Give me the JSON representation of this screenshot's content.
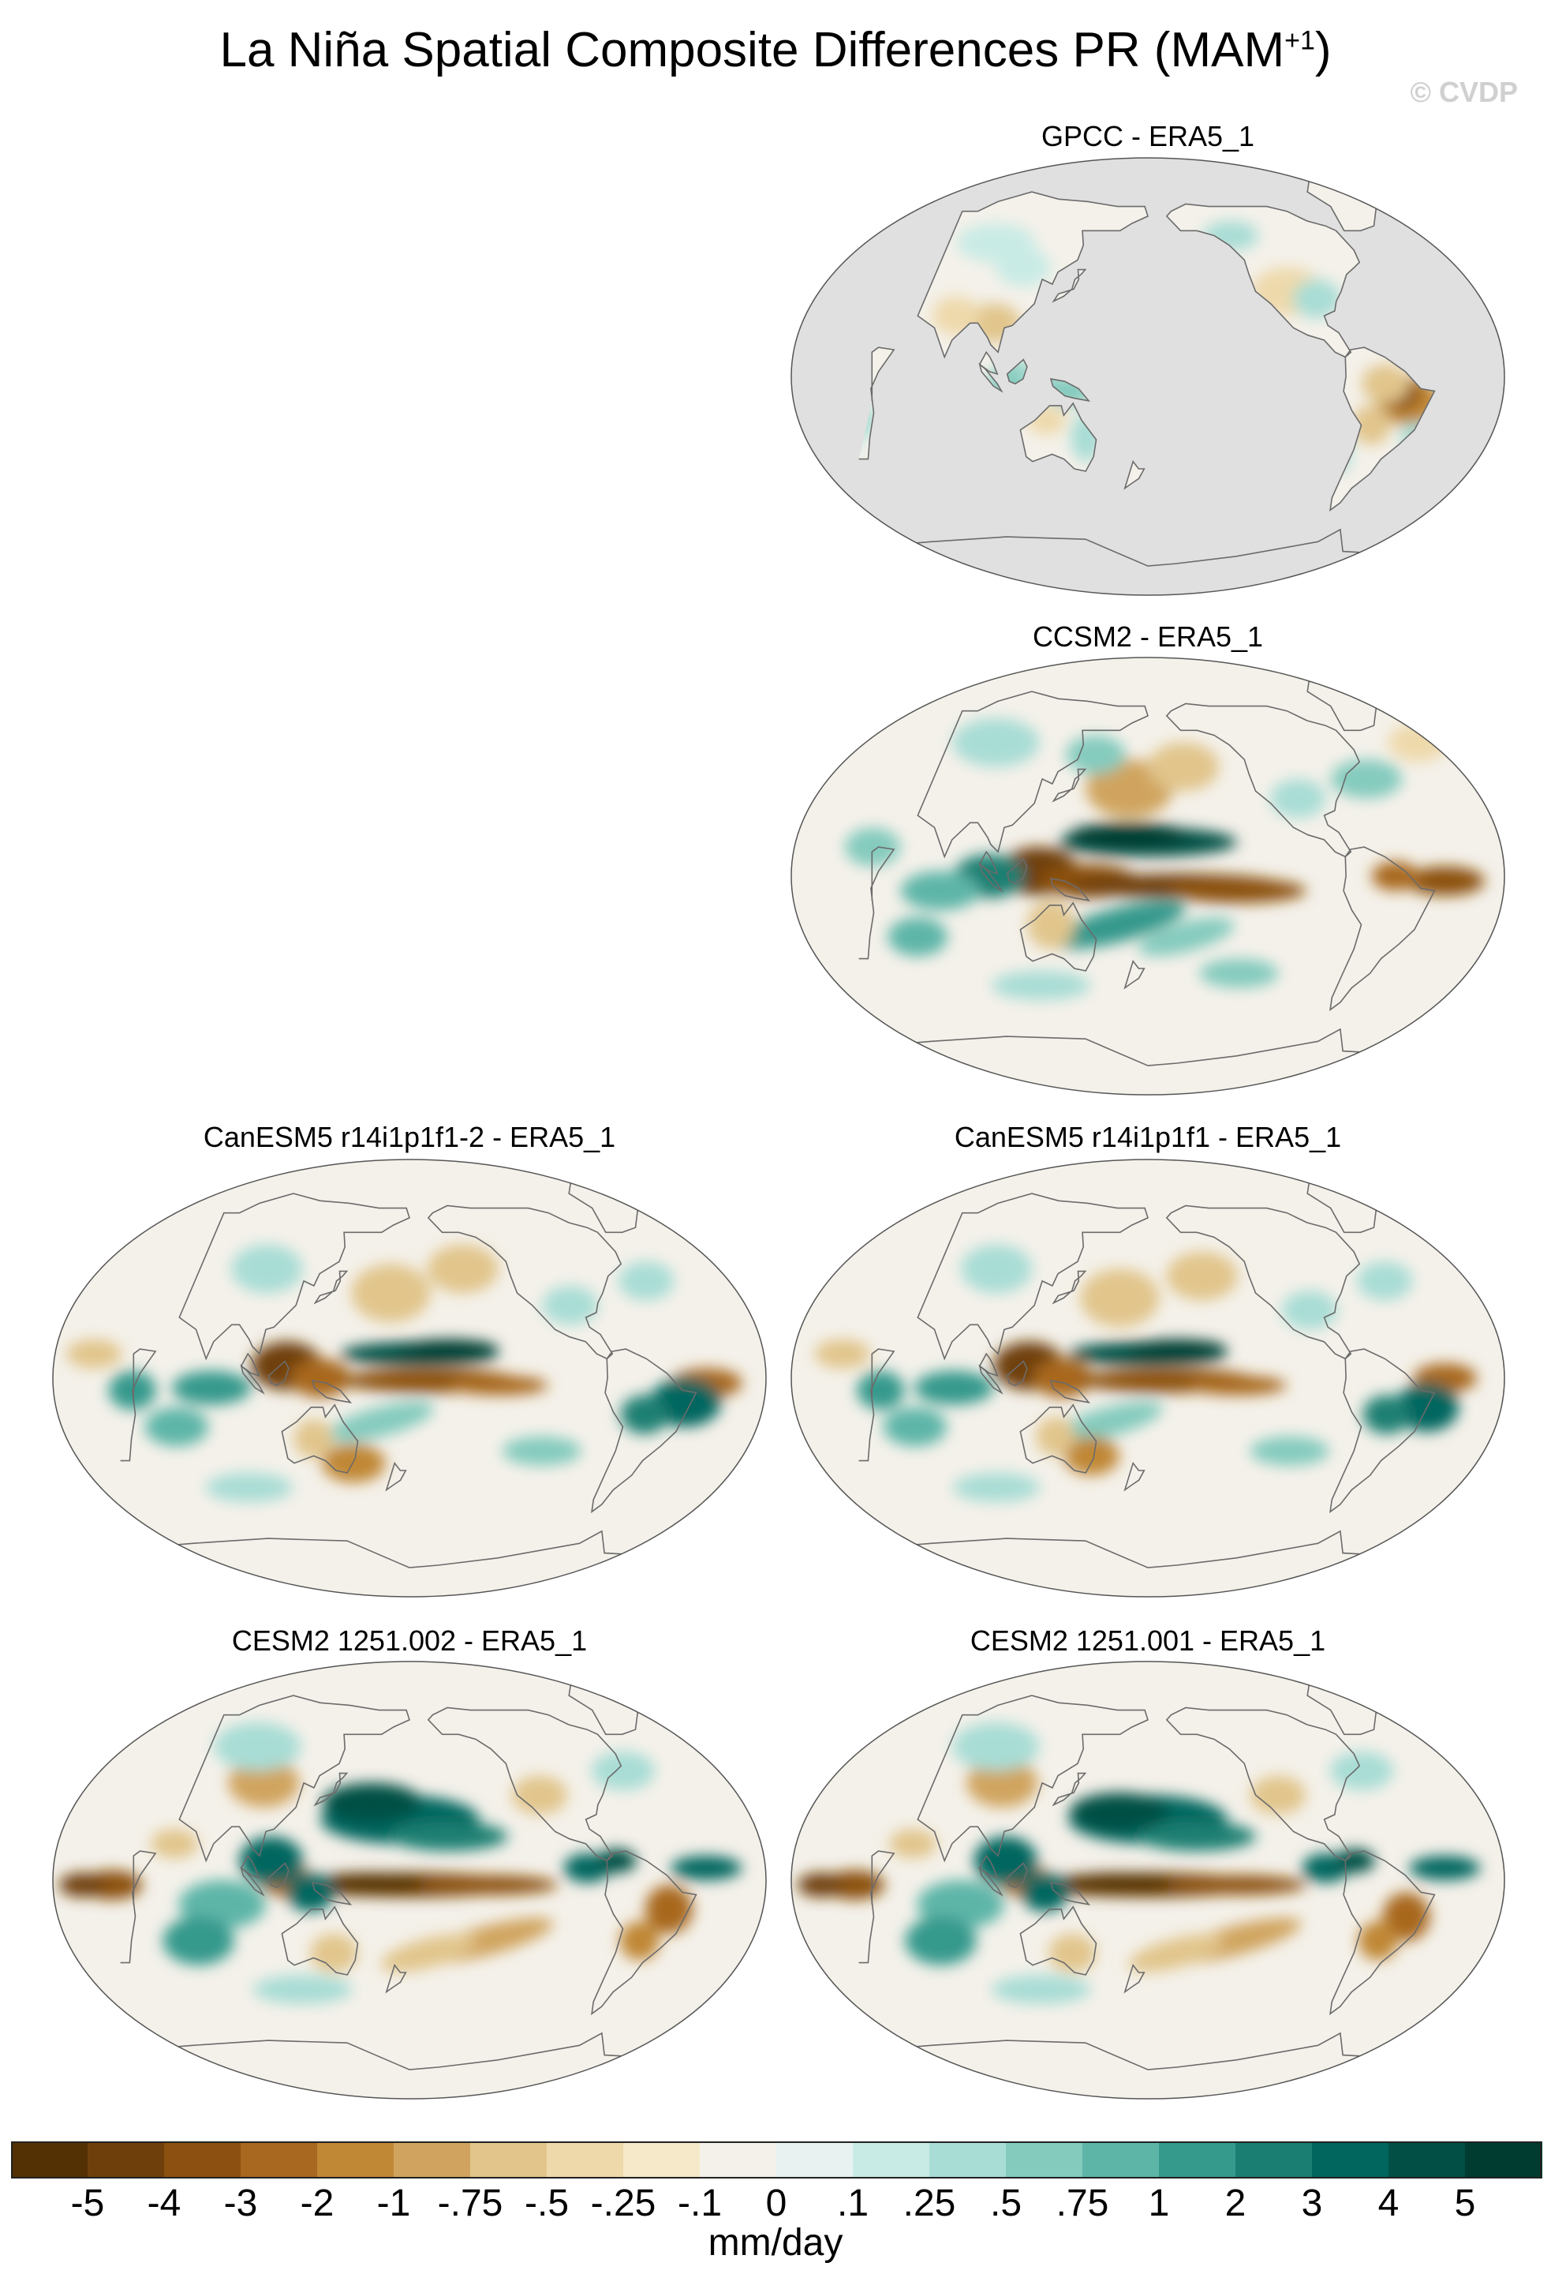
{
  "title_main": "La Niña Spatial Composite Differences PR (MAM",
  "title_sup": "+1",
  "title_close": ")",
  "watermark": "© CVDP",
  "chart_data": {
    "type": "heatmap",
    "title": "La Niña Spatial Composite Differences PR (MAM+1)",
    "projection": "Robinson, centered on the Pacific",
    "units": "mm/day",
    "panels": [
      {
        "name": "GPCC - ERA5_1",
        "coverage": "land only (ocean masked grey)",
        "features": [
          "drying over northeast Brazil",
          "moistening over Indonesia and eastern Australia",
          "weak moistening over southern Africa"
        ]
      },
      {
        "name": "CCSM2 - ERA5_1",
        "coverage": "global",
        "features": [
          "strong drying along the equatorial Pacific",
          "strong drying over the Maritime Continent",
          "moistening in northern off-equatorial Pacific band",
          "drying over the equatorial Atlantic"
        ]
      },
      {
        "name": "CanESM5 r14i1p1f1-2 - ERA5_1",
        "coverage": "global",
        "features": [
          "drying over Indonesia and equatorial Pacific",
          "moistening north of the equator in the central Pacific",
          "moistening over the tropical Atlantic"
        ]
      },
      {
        "name": "CanESM5 r14i1p1f1 - ERA5_1",
        "coverage": "global",
        "features": [
          "drying over Indonesia and equatorial Pacific",
          "moistening north of the equator in the central Pacific",
          "moistening over the tropical Atlantic"
        ]
      },
      {
        "name": "CESM2 1251.002 - ERA5_1",
        "coverage": "global",
        "features": [
          "strong equatorial Pacific drying",
          "moistening over the Maritime Continent",
          "moistening in the North Pacific band"
        ]
      },
      {
        "name": "CESM2 1251.001 - ERA5_1",
        "coverage": "global",
        "features": [
          "strong equatorial Pacific drying",
          "moistening over the Maritime Continent",
          "moistening in the North Pacific band"
        ]
      }
    ],
    "colorbar": {
      "levels": [
        "-5",
        "-4",
        "-3",
        "-2",
        "-1",
        "-.75",
        "-.5",
        "-.25",
        "-.1",
        "0",
        ".1",
        ".25",
        ".5",
        ".75",
        "1",
        "2",
        "3",
        "4",
        "5"
      ],
      "colors": [
        "#543005",
        "#6f3f0b",
        "#8c5110",
        "#a8681f",
        "#c08735",
        "#d0a45e",
        "#e1c58b",
        "#eed9ab",
        "#f5e9c9",
        "#f4f1ea",
        "#e8f3f1",
        "#c9ebe5",
        "#a8ddd5",
        "#84cbbe",
        "#5db5a8",
        "#35998c",
        "#1a7f72",
        "#01665e",
        "#014f45",
        "#003c30"
      ]
    }
  }
}
